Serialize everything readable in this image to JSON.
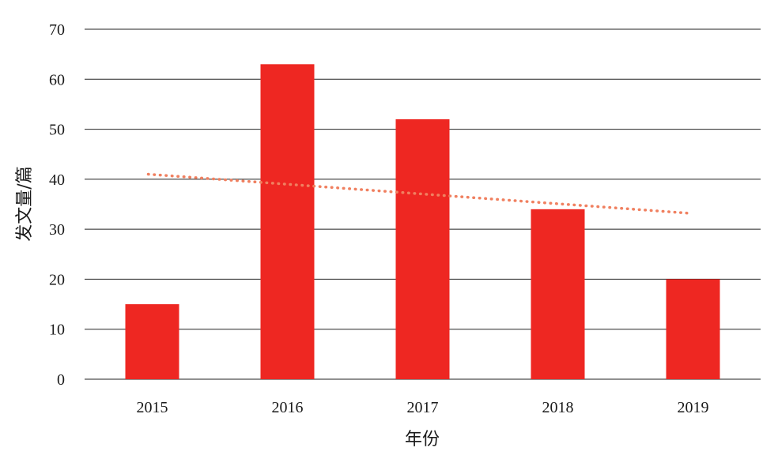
{
  "chart_data": {
    "type": "bar",
    "categories": [
      "2015",
      "2016",
      "2017",
      "2018",
      "2019"
    ],
    "values": [
      15,
      63,
      52,
      34,
      20
    ],
    "xlabel": "年份",
    "ylabel": "发文量/篇",
    "ylim": [
      0,
      70
    ],
    "yticks": [
      "0",
      "10",
      "20",
      "30",
      "40",
      "50",
      "60",
      "70"
    ],
    "trendline": {
      "type": "linear",
      "style": "dotted",
      "start": 41,
      "end": 33.2
    },
    "grid": true,
    "legend": "none",
    "colors": {
      "bar": "#ee2722",
      "trend": "#f08060",
      "grid": "#222222"
    }
  }
}
